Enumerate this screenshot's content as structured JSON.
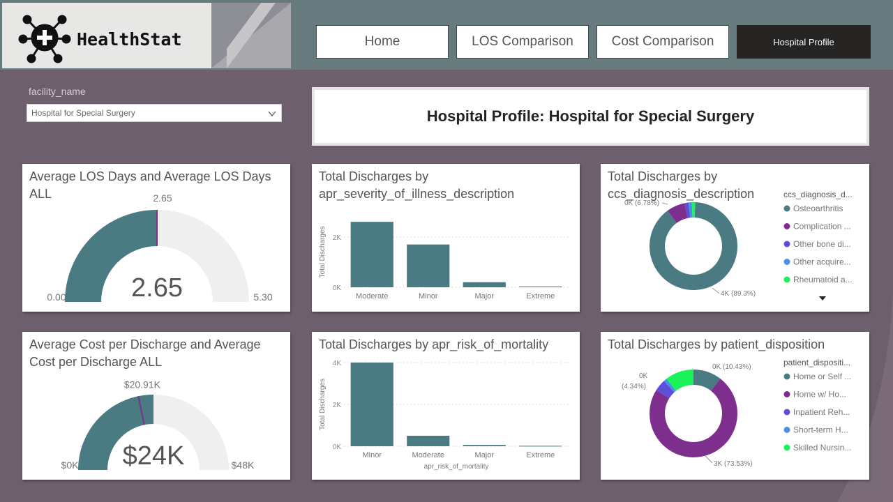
{
  "header": {
    "brand": "HealthStat",
    "nav": [
      {
        "label": "Home",
        "active": false
      },
      {
        "label": "LOS Comparison",
        "active": false
      },
      {
        "label": "Cost Comparison",
        "active": false
      },
      {
        "label": "Hospital Profile",
        "active": true
      }
    ]
  },
  "slicer": {
    "label": "facility_name",
    "value": "Hospital for Special Surgery"
  },
  "page_title": "Hospital Profile: Hospital for Special Surgery",
  "colors": {
    "teal": "#4a7a82",
    "purple": "#7e2f8e",
    "indigo": "#5c4fd8",
    "blue": "#4a90e2",
    "green": "#1af25a",
    "track": "#efefef"
  },
  "cards": {
    "los_gauge": {
      "title": "Average LOS Days and Average LOS Days ALL",
      "value": 2.65,
      "min": 0,
      "max": 5.3,
      "target": 2.65,
      "value_label": "2.65",
      "min_label": "0.00",
      "max_label": "5.30",
      "target_label": "2.65"
    },
    "cost_gauge": {
      "title": "Average Cost per Discharge and Average Cost per Discharge ALL",
      "value": 24,
      "min": 0,
      "max": 48,
      "target": 20.91,
      "value_label": "$24K",
      "min_label": "$0K",
      "max_label": "$48K",
      "target_label": "$20.91K"
    },
    "severity_bar": {
      "title": "Total Discharges by apr_severity_of_illness_description",
      "ylabel": "Total Discharges",
      "yticks": [
        "0K",
        "2K"
      ]
    },
    "mortality_bar": {
      "title": "Total Discharges by apr_risk_of_mortality",
      "ylabel": "Total Discharges",
      "xlabel": "apr_risk_of_mortality",
      "yticks": [
        "0K",
        "2K",
        "4K"
      ]
    },
    "diagnosis_donut": {
      "title": "Total Discharges by ccs_diagnosis_description",
      "legend_title": "ccs_diagnosis_d...",
      "legend": [
        "Osteoarthritis",
        "Complication ...",
        "Other bone di...",
        "Other acquire...",
        "Rheumatoid a..."
      ],
      "labels": {
        "small": "0K (6.78%)",
        "large": "4K (89.3%)"
      }
    },
    "disposition_donut": {
      "title": "Total Discharges by patient_disposition",
      "legend_title": "patient_dispositi...",
      "legend": [
        "Home or Self ...",
        "Home w/ Ho...",
        "Inpatient Reh...",
        "Short-term H...",
        "Skilled Nursin..."
      ],
      "labels": {
        "top": "0K (10.43%)",
        "left1": "0K",
        "left2": "(4.34%)",
        "bottom": "3K (73.53%)"
      }
    }
  },
  "chart_data": [
    {
      "type": "bar",
      "title": "Total Discharges by apr_severity_of_illness_description",
      "ylabel": "Total Discharges",
      "categories": [
        "Moderate",
        "Minor",
        "Major",
        "Extreme"
      ],
      "values": [
        2600,
        1700,
        200,
        30
      ],
      "ylim": [
        0,
        2800
      ]
    },
    {
      "type": "bar",
      "title": "Total Discharges by apr_risk_of_mortality",
      "ylabel": "Total Discharges",
      "xlabel": "apr_risk_of_mortality",
      "categories": [
        "Minor",
        "Moderate",
        "Major",
        "Extreme"
      ],
      "values": [
        4000,
        500,
        60,
        20
      ],
      "ylim": [
        0,
        4000
      ]
    },
    {
      "type": "pie",
      "title": "Total Discharges by ccs_diagnosis_description",
      "categories": [
        "Osteoarthritis",
        "Complication ...",
        "Other bone di...",
        "Other acquire...",
        "Rheumatoid a..."
      ],
      "values": [
        89.3,
        6.78,
        1.5,
        1.2,
        1.22
      ]
    },
    {
      "type": "pie",
      "title": "Total Discharges by patient_disposition",
      "categories": [
        "Home or Self ...",
        "Home w/ Ho...",
        "Inpatient Reh...",
        "Short-term H...",
        "Skilled Nursin..."
      ],
      "values": [
        10.43,
        73.53,
        4.34,
        1.2,
        10.5
      ]
    }
  ]
}
